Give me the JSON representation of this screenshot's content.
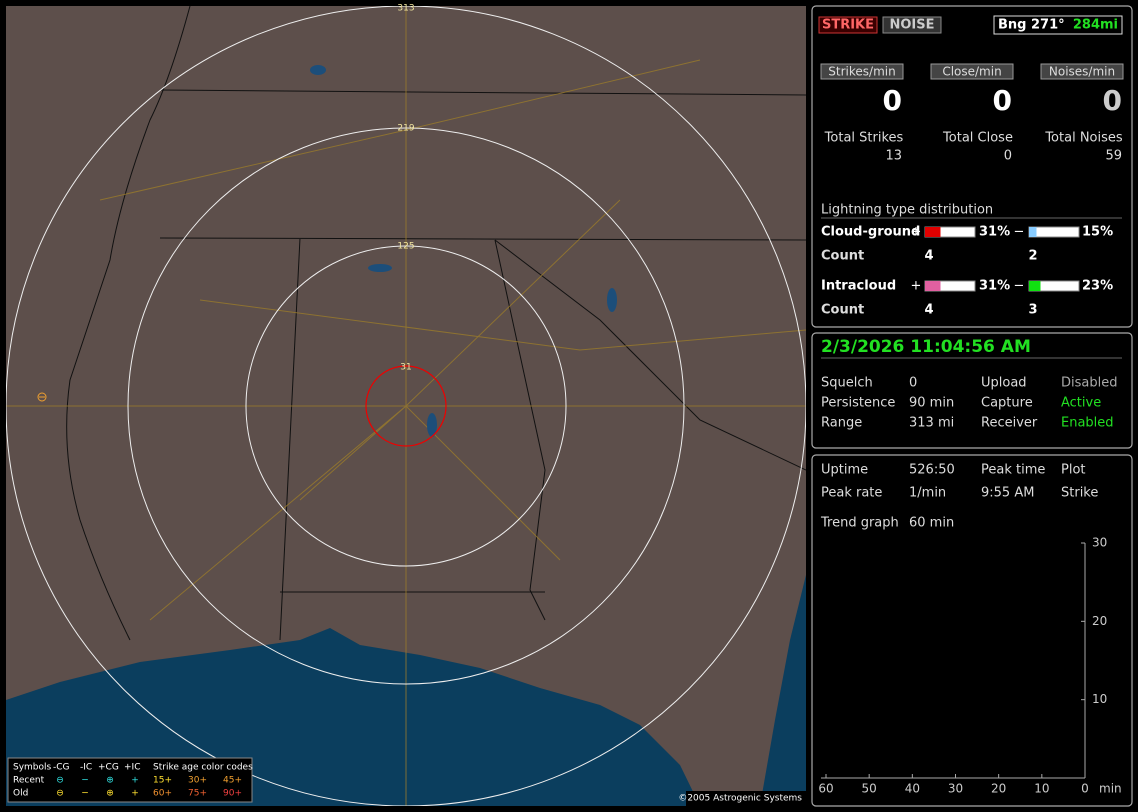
{
  "map": {
    "ring_labels": [
      "313",
      "219",
      "125",
      "31"
    ],
    "copyright": "©2005 Astrogenic Systems",
    "legend": {
      "headers": [
        "Symbols",
        "-CG",
        "-IC",
        "+CG",
        "+IC",
        "Strike age color codes"
      ],
      "rows": [
        {
          "label": "Recent",
          "symbols": [
            "⊖",
            "−",
            "⊕",
            "+"
          ],
          "ages": [
            "15+",
            "30+",
            "45+"
          ]
        },
        {
          "label": "Old",
          "symbols": [
            "⊖",
            "−",
            "⊕",
            "+"
          ],
          "ages": [
            "60+",
            "75+",
            "90+"
          ]
        }
      ]
    }
  },
  "status": {
    "strike": "STRIKE",
    "noise": "NOISE",
    "bearing": "Bng 271°",
    "distance": "284mi"
  },
  "rates": [
    {
      "label": "Strikes/min",
      "value": 0
    },
    {
      "label": "Close/min",
      "value": 0
    },
    {
      "label": "Noises/min",
      "value": 0
    }
  ],
  "totals": [
    {
      "label": "Total Strikes",
      "value": 13
    },
    {
      "label": "Total Close",
      "value": 0
    },
    {
      "label": "Total Noises",
      "value": 59
    }
  ],
  "distribution": {
    "title": "Lightning type distribution",
    "count_label": "Count",
    "rows": [
      {
        "name": "Cloud-ground",
        "plus_sign": "+",
        "plus": 31,
        "plus_label": "31%",
        "minus_sign": "−",
        "minus": 15,
        "minus_label": "15%",
        "plus_count": 4,
        "minus_count": 2
      },
      {
        "name": "Intracloud",
        "plus_sign": "+",
        "plus": 31,
        "plus_label": "31%",
        "minus_sign": "−",
        "minus": 23,
        "minus_label": "23%",
        "plus_count": 4,
        "minus_count": 3
      }
    ]
  },
  "clock": "2/3/2026 11:04:56 AM",
  "settings": [
    [
      "Squelch",
      "0",
      "Upload",
      "Disabled"
    ],
    [
      "Persistence",
      "90 min",
      "Capture",
      "Active"
    ],
    [
      "Range",
      "313 mi",
      "Receiver",
      "Enabled"
    ]
  ],
  "stats": [
    [
      "Uptime",
      "526:50",
      "Peak time",
      "Plot"
    ],
    [
      "Peak rate",
      "1/min",
      "9:55 AM",
      "Strike"
    ]
  ],
  "trend": {
    "label": "Trend graph",
    "value": "60 min",
    "x_unit": "min",
    "xlim": [
      60,
      0
    ],
    "xticks": [
      60,
      50,
      40,
      30,
      20,
      10,
      0
    ],
    "ylim": [
      0,
      30
    ],
    "yticks": [
      10,
      20,
      30
    ]
  }
}
